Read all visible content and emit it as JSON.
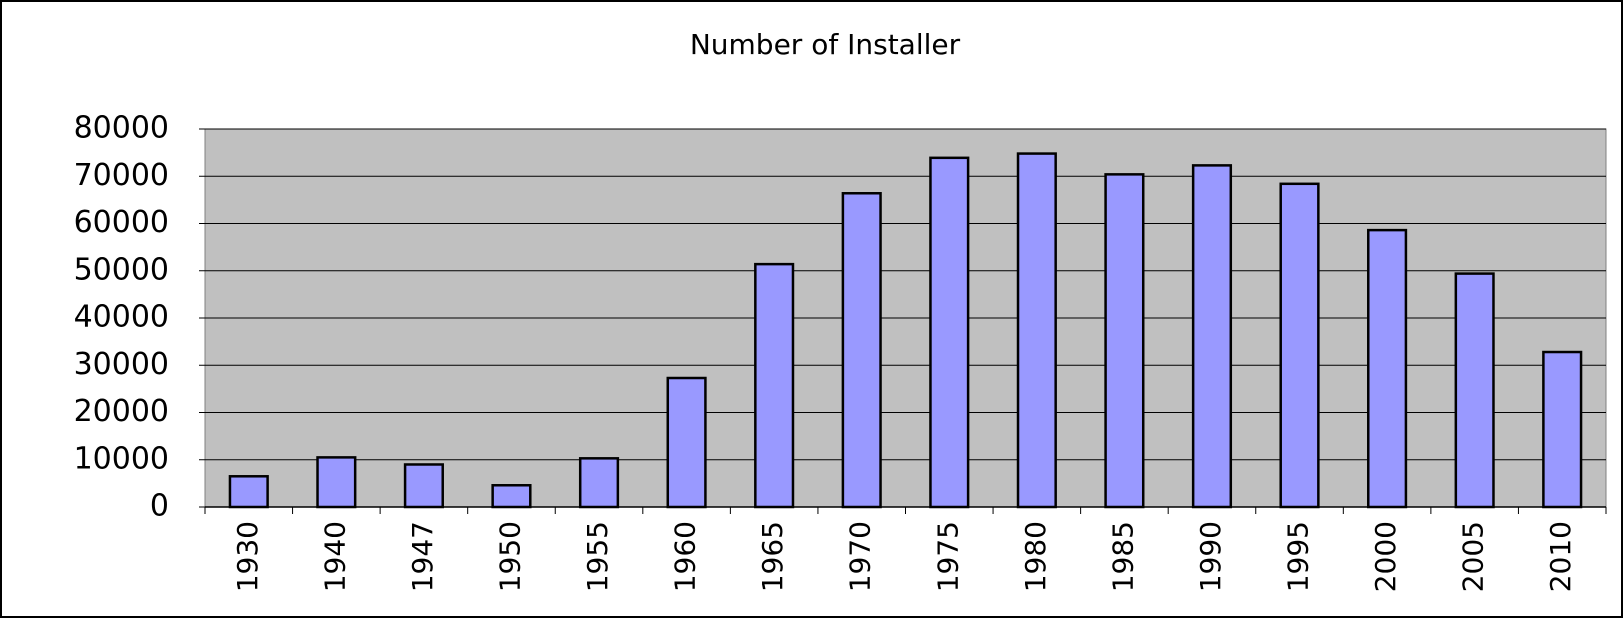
{
  "chart_data": {
    "type": "bar",
    "title": "Number of Installer",
    "categories": [
      "1930",
      "1940",
      "1947",
      "1950",
      "1955",
      "1960",
      "1965",
      "1970",
      "1975",
      "1980",
      "1985",
      "1990",
      "1995",
      "2000",
      "2005",
      "2010"
    ],
    "values": [
      6500,
      10500,
      9000,
      4600,
      10300,
      27300,
      51400,
      66400,
      73900,
      74800,
      70400,
      72300,
      68400,
      58600,
      49400,
      32800
    ],
    "color": "#9999ff",
    "ylim": [
      0,
      80000
    ],
    "yticks": [
      0,
      10000,
      20000,
      30000,
      40000,
      50000,
      60000,
      70000,
      80000
    ],
    "grid": true
  }
}
